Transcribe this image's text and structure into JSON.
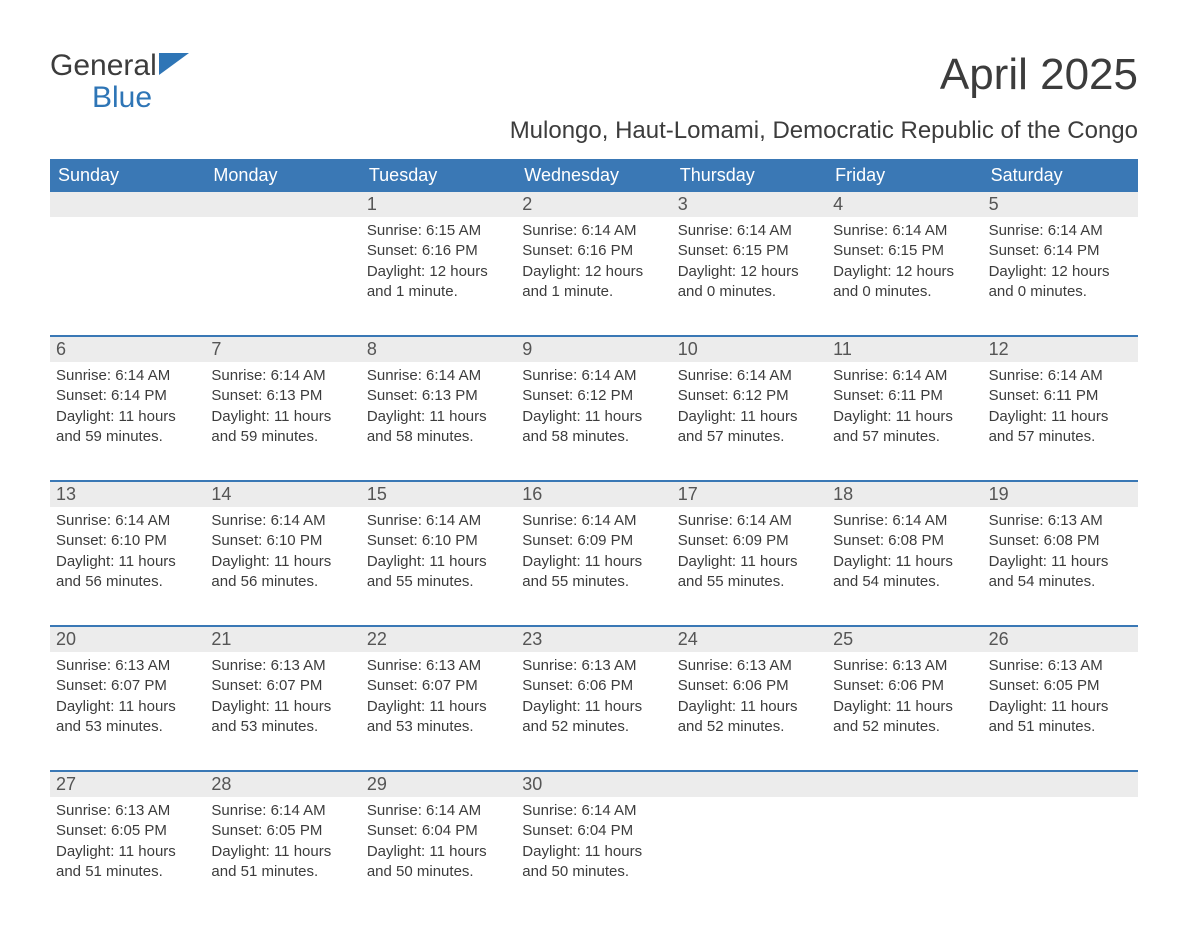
{
  "logo": {
    "line1": "General",
    "line2": "Blue",
    "triangle_color": "#2e75b6"
  },
  "title": "April 2025",
  "location": "Mulongo, Haut-Lomami, Democratic Republic of the Congo",
  "colors": {
    "header_bg": "#3a78b5",
    "header_text": "#ffffff",
    "daynum_bg": "#ececec",
    "rule": "#3a78b5",
    "body_text": "#3c3c3c",
    "accent": "#2e75b6"
  },
  "typography": {
    "title_fontsize": 44,
    "location_fontsize": 24,
    "dow_fontsize": 18,
    "daynum_fontsize": 18,
    "cell_fontsize": 15
  },
  "days_of_week": [
    "Sunday",
    "Monday",
    "Tuesday",
    "Wednesday",
    "Thursday",
    "Friday",
    "Saturday"
  ],
  "weeks": [
    [
      null,
      null,
      {
        "n": "1",
        "sunrise": "6:15 AM",
        "sunset": "6:16 PM",
        "daylight1": "12 hours",
        "daylight2": "and 1 minute."
      },
      {
        "n": "2",
        "sunrise": "6:14 AM",
        "sunset": "6:16 PM",
        "daylight1": "12 hours",
        "daylight2": "and 1 minute."
      },
      {
        "n": "3",
        "sunrise": "6:14 AM",
        "sunset": "6:15 PM",
        "daylight1": "12 hours",
        "daylight2": "and 0 minutes."
      },
      {
        "n": "4",
        "sunrise": "6:14 AM",
        "sunset": "6:15 PM",
        "daylight1": "12 hours",
        "daylight2": "and 0 minutes."
      },
      {
        "n": "5",
        "sunrise": "6:14 AM",
        "sunset": "6:14 PM",
        "daylight1": "12 hours",
        "daylight2": "and 0 minutes."
      }
    ],
    [
      {
        "n": "6",
        "sunrise": "6:14 AM",
        "sunset": "6:14 PM",
        "daylight1": "11 hours",
        "daylight2": "and 59 minutes."
      },
      {
        "n": "7",
        "sunrise": "6:14 AM",
        "sunset": "6:13 PM",
        "daylight1": "11 hours",
        "daylight2": "and 59 minutes."
      },
      {
        "n": "8",
        "sunrise": "6:14 AM",
        "sunset": "6:13 PM",
        "daylight1": "11 hours",
        "daylight2": "and 58 minutes."
      },
      {
        "n": "9",
        "sunrise": "6:14 AM",
        "sunset": "6:12 PM",
        "daylight1": "11 hours",
        "daylight2": "and 58 minutes."
      },
      {
        "n": "10",
        "sunrise": "6:14 AM",
        "sunset": "6:12 PM",
        "daylight1": "11 hours",
        "daylight2": "and 57 minutes."
      },
      {
        "n": "11",
        "sunrise": "6:14 AM",
        "sunset": "6:11 PM",
        "daylight1": "11 hours",
        "daylight2": "and 57 minutes."
      },
      {
        "n": "12",
        "sunrise": "6:14 AM",
        "sunset": "6:11 PM",
        "daylight1": "11 hours",
        "daylight2": "and 57 minutes."
      }
    ],
    [
      {
        "n": "13",
        "sunrise": "6:14 AM",
        "sunset": "6:10 PM",
        "daylight1": "11 hours",
        "daylight2": "and 56 minutes."
      },
      {
        "n": "14",
        "sunrise": "6:14 AM",
        "sunset": "6:10 PM",
        "daylight1": "11 hours",
        "daylight2": "and 56 minutes."
      },
      {
        "n": "15",
        "sunrise": "6:14 AM",
        "sunset": "6:10 PM",
        "daylight1": "11 hours",
        "daylight2": "and 55 minutes."
      },
      {
        "n": "16",
        "sunrise": "6:14 AM",
        "sunset": "6:09 PM",
        "daylight1": "11 hours",
        "daylight2": "and 55 minutes."
      },
      {
        "n": "17",
        "sunrise": "6:14 AM",
        "sunset": "6:09 PM",
        "daylight1": "11 hours",
        "daylight2": "and 55 minutes."
      },
      {
        "n": "18",
        "sunrise": "6:14 AM",
        "sunset": "6:08 PM",
        "daylight1": "11 hours",
        "daylight2": "and 54 minutes."
      },
      {
        "n": "19",
        "sunrise": "6:13 AM",
        "sunset": "6:08 PM",
        "daylight1": "11 hours",
        "daylight2": "and 54 minutes."
      }
    ],
    [
      {
        "n": "20",
        "sunrise": "6:13 AM",
        "sunset": "6:07 PM",
        "daylight1": "11 hours",
        "daylight2": "and 53 minutes."
      },
      {
        "n": "21",
        "sunrise": "6:13 AM",
        "sunset": "6:07 PM",
        "daylight1": "11 hours",
        "daylight2": "and 53 minutes."
      },
      {
        "n": "22",
        "sunrise": "6:13 AM",
        "sunset": "6:07 PM",
        "daylight1": "11 hours",
        "daylight2": "and 53 minutes."
      },
      {
        "n": "23",
        "sunrise": "6:13 AM",
        "sunset": "6:06 PM",
        "daylight1": "11 hours",
        "daylight2": "and 52 minutes."
      },
      {
        "n": "24",
        "sunrise": "6:13 AM",
        "sunset": "6:06 PM",
        "daylight1": "11 hours",
        "daylight2": "and 52 minutes."
      },
      {
        "n": "25",
        "sunrise": "6:13 AM",
        "sunset": "6:06 PM",
        "daylight1": "11 hours",
        "daylight2": "and 52 minutes."
      },
      {
        "n": "26",
        "sunrise": "6:13 AM",
        "sunset": "6:05 PM",
        "daylight1": "11 hours",
        "daylight2": "and 51 minutes."
      }
    ],
    [
      {
        "n": "27",
        "sunrise": "6:13 AM",
        "sunset": "6:05 PM",
        "daylight1": "11 hours",
        "daylight2": "and 51 minutes."
      },
      {
        "n": "28",
        "sunrise": "6:14 AM",
        "sunset": "6:05 PM",
        "daylight1": "11 hours",
        "daylight2": "and 51 minutes."
      },
      {
        "n": "29",
        "sunrise": "6:14 AM",
        "sunset": "6:04 PM",
        "daylight1": "11 hours",
        "daylight2": "and 50 minutes."
      },
      {
        "n": "30",
        "sunrise": "6:14 AM",
        "sunset": "6:04 PM",
        "daylight1": "11 hours",
        "daylight2": "and 50 minutes."
      },
      null,
      null,
      null
    ]
  ],
  "labels": {
    "sunrise": "Sunrise: ",
    "sunset": "Sunset: ",
    "daylight": "Daylight: "
  }
}
